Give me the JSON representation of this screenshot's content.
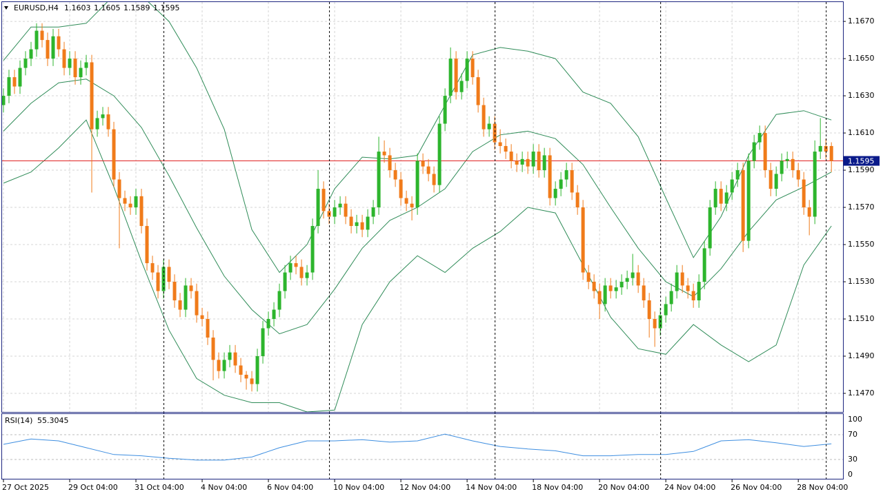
{
  "chart_data": {
    "type": "candlestick",
    "symbol": "EURUSD,H4",
    "xlim": [
      -0.25,
      152.1
    ],
    "ylim": [
      1.146,
      1.16804
    ],
    "up_color": "#2db52d",
    "down_color": "#f07b1a",
    "xticks": [
      {
        "value": 0,
        "label": "27 Oct 2025"
      },
      {
        "value": 12,
        "label": "29 Oct 04:00"
      },
      {
        "value": 24,
        "label": "31 Oct 04:00"
      },
      {
        "value": 36,
        "label": "4 Nov 04:00"
      },
      {
        "value": 48,
        "label": "6 Nov 04:00"
      },
      {
        "value": 60,
        "label": "10 Nov 04:00"
      },
      {
        "value": 72,
        "label": "12 Nov 04:00"
      },
      {
        "value": 84,
        "label": "14 Nov 04:00"
      },
      {
        "value": 96,
        "label": "18 Nov 04:00"
      },
      {
        "value": 108,
        "label": "20 Nov 04:00"
      },
      {
        "value": 120,
        "label": "24 Nov 04:00"
      },
      {
        "value": 132,
        "label": "26 Nov 04:00"
      },
      {
        "value": 144,
        "label": "28 Nov 04:00"
      }
    ],
    "yticks": [
      {
        "value": 1.147,
        "label": "1.1470"
      },
      {
        "value": 1.149,
        "label": "1.1490"
      },
      {
        "value": 1.151,
        "label": "1.1510"
      },
      {
        "value": 1.153,
        "label": "1.1530"
      },
      {
        "value": 1.155,
        "label": "1.1550"
      },
      {
        "value": 1.157,
        "label": "1.1570"
      },
      {
        "value": 1.159,
        "label": "1.1590"
      },
      {
        "value": 1.161,
        "label": "1.1610"
      },
      {
        "value": 1.163,
        "label": "1.1630"
      },
      {
        "value": 1.165,
        "label": "1.1650"
      },
      {
        "value": 1.167,
        "label": "1.1670"
      }
    ],
    "grid": true,
    "period_separators": [
      29,
      59,
      89,
      119,
      149
    ],
    "current_price": 1.1595,
    "price_line_color": "#e02020",
    "open": [
      1.1625,
      1.163,
      1.164,
      1.1635,
      1.1645,
      1.165,
      1.1655,
      1.1665,
      1.166,
      1.165,
      1.1662,
      1.1655,
      1.1645,
      1.165,
      1.164,
      1.1645,
      1.1648,
      1.1612,
      1.1618,
      1.162,
      1.1612,
      1.1585,
      1.1575,
      1.1572,
      1.157,
      1.1576,
      1.156,
      1.154,
      1.1535,
      1.1525,
      1.1538,
      1.153,
      1.152,
      1.1515,
      1.1528,
      1.1525,
      1.1512,
      1.151,
      1.15,
      1.1488,
      1.1482,
      1.1488,
      1.1492,
      1.1485,
      1.148,
      1.1478,
      1.1475,
      1.149,
      1.1505,
      1.151,
      1.1515,
      1.1525,
      1.1535,
      1.154,
      1.1538,
      1.1532,
      1.1535,
      1.156,
      1.158,
      1.1568,
      1.1565,
      1.157,
      1.1572,
      1.1565,
      1.156,
      1.1562,
      1.1558,
      1.1565,
      1.157,
      1.16,
      1.1598,
      1.159,
      1.1585,
      1.1575,
      1.1572,
      1.157,
      1.1595,
      1.1592,
      1.1588,
      1.1582,
      1.1615,
      1.163,
      1.165,
      1.1632,
      1.1638,
      1.165,
      1.164,
      1.1625,
      1.1612,
      1.1615,
      1.1605,
      1.1603,
      1.16,
      1.1595,
      1.1593,
      1.1596,
      1.1592,
      1.16,
      1.159,
      1.1598,
      1.1575,
      1.158,
      1.1585,
      1.159,
      1.1578,
      1.157,
      1.1535,
      1.153,
      1.1525,
      1.1518,
      1.1528,
      1.1525,
      1.1527,
      1.153,
      1.1532,
      1.1535,
      1.1528,
      1.152,
      1.151,
      1.1505,
      1.1512,
      1.1518,
      1.1525,
      1.1535,
      1.1528,
      1.1525,
      1.152,
      1.153,
      1.1548,
      1.157,
      1.158,
      1.1572,
      1.1578,
      1.1585,
      1.159,
      1.1552,
      1.1595,
      1.1605,
      1.161,
      1.159,
      1.158,
      1.1588,
      1.1595,
      1.1596,
      1.159,
      1.1585,
      1.157,
      1.1565,
      1.16,
      1.1603,
      1.1603
    ],
    "high": [
      1.1634,
      1.1644,
      1.1644,
      1.1649,
      1.1654,
      1.1659,
      1.1669,
      1.1669,
      1.1664,
      1.1666,
      1.1666,
      1.1659,
      1.1654,
      1.1654,
      1.1649,
      1.1652,
      1.1652,
      1.1622,
      1.1624,
      1.1624,
      1.1616,
      1.1589,
      1.1579,
      1.1576,
      1.158,
      1.158,
      1.1564,
      1.1544,
      1.1539,
      1.1542,
      1.1542,
      1.1534,
      1.1524,
      1.1532,
      1.1532,
      1.1529,
      1.1516,
      1.1514,
      1.1504,
      1.1492,
      1.1492,
      1.1496,
      1.1496,
      1.1489,
      1.1482,
      1.1482,
      1.1494,
      1.1509,
      1.1514,
      1.1519,
      1.1529,
      1.1539,
      1.1544,
      1.1544,
      1.1542,
      1.1539,
      1.1564,
      1.159,
      1.1584,
      1.1572,
      1.1574,
      1.1576,
      1.1576,
      1.1569,
      1.1566,
      1.1566,
      1.1569,
      1.1574,
      1.1608,
      1.1606,
      1.1602,
      1.1594,
      1.1589,
      1.1579,
      1.1576,
      1.1599,
      1.1599,
      1.1596,
      1.1592,
      1.1619,
      1.1634,
      1.1656,
      1.1654,
      1.1642,
      1.1654,
      1.1654,
      1.1644,
      1.1629,
      1.1619,
      1.1619,
      1.1612,
      1.1607,
      1.1604,
      1.1599,
      1.16,
      1.16,
      1.1604,
      1.1604,
      1.1602,
      1.1602,
      1.1584,
      1.1589,
      1.1594,
      1.1594,
      1.1582,
      1.1574,
      1.1539,
      1.1534,
      1.1529,
      1.1532,
      1.1532,
      1.1531,
      1.1534,
      1.1536,
      1.1545,
      1.1539,
      1.1532,
      1.1524,
      1.1514,
      1.1516,
      1.1522,
      1.1529,
      1.1539,
      1.1539,
      1.1532,
      1.1529,
      1.1534,
      1.1552,
      1.1574,
      1.1584,
      1.1584,
      1.1582,
      1.1589,
      1.1594,
      1.1594,
      1.1599,
      1.1609,
      1.1614,
      1.1614,
      1.1594,
      1.1592,
      1.1599,
      1.16,
      1.16,
      1.1594,
      1.1589,
      1.1574,
      1.1606,
      1.1618,
      1.1607,
      1.1605
    ],
    "low": [
      1.1621,
      1.1626,
      1.1631,
      1.1631,
      1.1641,
      1.1646,
      1.1651,
      1.1656,
      1.1646,
      1.1646,
      1.1651,
      1.1641,
      1.1641,
      1.1636,
      1.1636,
      1.1641,
      1.1578,
      1.1608,
      1.1614,
      1.1608,
      1.1581,
      1.1548,
      1.1568,
      1.1566,
      1.1566,
      1.1556,
      1.1536,
      1.1531,
      1.1521,
      1.1521,
      1.1526,
      1.1516,
      1.1511,
      1.1511,
      1.1521,
      1.1508,
      1.1506,
      1.1496,
      1.1477,
      1.1478,
      1.1478,
      1.1484,
      1.1481,
      1.1476,
      1.1472,
      1.1471,
      1.1471,
      1.1486,
      1.1501,
      1.1506,
      1.1511,
      1.1521,
      1.1531,
      1.1534,
      1.1528,
      1.1528,
      1.1531,
      1.1556,
      1.1564,
      1.1561,
      1.1561,
      1.1566,
      1.1561,
      1.1556,
      1.1556,
      1.1554,
      1.1554,
      1.1561,
      1.1566,
      1.1594,
      1.1586,
      1.1581,
      1.1571,
      1.1568,
      1.1563,
      1.1566,
      1.1588,
      1.1584,
      1.1578,
      1.1578,
      1.1611,
      1.1626,
      1.1628,
      1.1628,
      1.1634,
      1.1636,
      1.1621,
      1.1608,
      1.1608,
      1.1601,
      1.1599,
      1.1596,
      1.1591,
      1.1589,
      1.1589,
      1.1588,
      1.1588,
      1.1586,
      1.1586,
      1.1571,
      1.1571,
      1.1576,
      1.1581,
      1.1574,
      1.1566,
      1.1531,
      1.1526,
      1.1521,
      1.151,
      1.1514,
      1.1521,
      1.1521,
      1.1523,
      1.1526,
      1.1528,
      1.1524,
      1.1516,
      1.15,
      1.1495,
      1.1501,
      1.1508,
      1.1514,
      1.1521,
      1.1524,
      1.1521,
      1.1516,
      1.1516,
      1.1526,
      1.1544,
      1.1566,
      1.1568,
      1.1568,
      1.1574,
      1.1581,
      1.1546,
      1.1548,
      1.1591,
      1.1601,
      1.1586,
      1.1576,
      1.1576,
      1.1584,
      1.1591,
      1.1586,
      1.1581,
      1.1566,
      1.1555,
      1.1561,
      1.1596,
      1.1596,
      1.1589
    ],
    "close": [
      1.163,
      1.164,
      1.1635,
      1.1645,
      1.165,
      1.1655,
      1.1665,
      1.166,
      1.165,
      1.1662,
      1.1655,
      1.1645,
      1.165,
      1.164,
      1.1645,
      1.1648,
      1.1612,
      1.1618,
      1.162,
      1.1612,
      1.1585,
      1.1575,
      1.1572,
      1.157,
      1.1576,
      1.156,
      1.154,
      1.1535,
      1.1525,
      1.1538,
      1.153,
      1.152,
      1.1515,
      1.1528,
      1.1525,
      1.1512,
      1.151,
      1.15,
      1.1488,
      1.1482,
      1.1488,
      1.1492,
      1.1485,
      1.148,
      1.1478,
      1.1475,
      1.149,
      1.1505,
      1.151,
      1.1515,
      1.1525,
      1.1535,
      1.154,
      1.1538,
      1.1532,
      1.1535,
      1.156,
      1.158,
      1.1568,
      1.1565,
      1.157,
      1.1572,
      1.1565,
      1.156,
      1.1562,
      1.1558,
      1.1565,
      1.157,
      1.16,
      1.1598,
      1.159,
      1.1585,
      1.1575,
      1.1572,
      1.157,
      1.1595,
      1.1592,
      1.1588,
      1.1582,
      1.1615,
      1.163,
      1.165,
      1.1632,
      1.1638,
      1.165,
      1.164,
      1.1625,
      1.1612,
      1.1615,
      1.1605,
      1.1603,
      1.16,
      1.1595,
      1.1593,
      1.1596,
      1.1592,
      1.16,
      1.159,
      1.1598,
      1.1575,
      1.158,
      1.1585,
      1.159,
      1.1578,
      1.157,
      1.1535,
      1.153,
      1.1525,
      1.1518,
      1.1528,
      1.1525,
      1.1527,
      1.153,
      1.1532,
      1.1535,
      1.1528,
      1.152,
      1.151,
      1.1505,
      1.1512,
      1.1518,
      1.1525,
      1.1535,
      1.1528,
      1.1525,
      1.152,
      1.153,
      1.1548,
      1.157,
      1.158,
      1.1572,
      1.1578,
      1.1585,
      1.159,
      1.1552,
      1.1595,
      1.1605,
      1.161,
      1.159,
      1.158,
      1.1588,
      1.1595,
      1.1596,
      1.159,
      1.1585,
      1.157,
      1.1565,
      1.16,
      1.1603,
      1.16,
      1.1595
    ],
    "sample_x": [
      0,
      5,
      10,
      15,
      20,
      25,
      30,
      35,
      40,
      45,
      50,
      55,
      60,
      65,
      70,
      75,
      80,
      85,
      90,
      95,
      100,
      105,
      110,
      115,
      120,
      125,
      130,
      135,
      140,
      145,
      150
    ],
    "bands": {
      "color": "#2e8b57",
      "upper": [
        1.1649,
        1.1667,
        1.1667,
        1.1669,
        1.1684,
        1.1684,
        1.167,
        1.1645,
        1.1612,
        1.1558,
        1.1535,
        1.155,
        1.158,
        1.1597,
        1.1596,
        1.1598,
        1.1625,
        1.1652,
        1.1656,
        1.1654,
        1.165,
        1.1632,
        1.1626,
        1.1608,
        1.1575,
        1.1543,
        1.1565,
        1.1598,
        1.162,
        1.1622,
        1.1617
      ],
      "middle": [
        1.1611,
        1.1626,
        1.1637,
        1.1639,
        1.163,
        1.1613,
        1.1587,
        1.1559,
        1.1533,
        1.1515,
        1.1502,
        1.1507,
        1.1526,
        1.1548,
        1.1563,
        1.157,
        1.158,
        1.16,
        1.1609,
        1.1611,
        1.1607,
        1.1593,
        1.157,
        1.1548,
        1.153,
        1.1522,
        1.1537,
        1.1557,
        1.1574,
        1.1581,
        1.1589
      ],
      "lower": [
        1.1583,
        1.1589,
        1.1602,
        1.1617,
        1.1581,
        1.1541,
        1.1504,
        1.1478,
        1.1469,
        1.1465,
        1.1465,
        1.146,
        1.1461,
        1.1507,
        1.153,
        1.1544,
        1.1535,
        1.1548,
        1.1557,
        1.157,
        1.1567,
        1.1539,
        1.1511,
        1.1494,
        1.1491,
        1.1507,
        1.1496,
        1.1487,
        1.1496,
        1.1539,
        1.156
      ]
    },
    "rsi": {
      "label": "RSI(14)",
      "color": "#3c8de0",
      "ylim": [
        0,
        100
      ],
      "yticks": [
        100,
        70,
        30,
        0
      ],
      "values": [
        54.4,
        63,
        60,
        49,
        38,
        36,
        32,
        29,
        29,
        34,
        49,
        60,
        60,
        62,
        58,
        60,
        71,
        60,
        51,
        47,
        44,
        36,
        36,
        38,
        38,
        43,
        60,
        62,
        57,
        51,
        55.3045
      ]
    }
  }
}
